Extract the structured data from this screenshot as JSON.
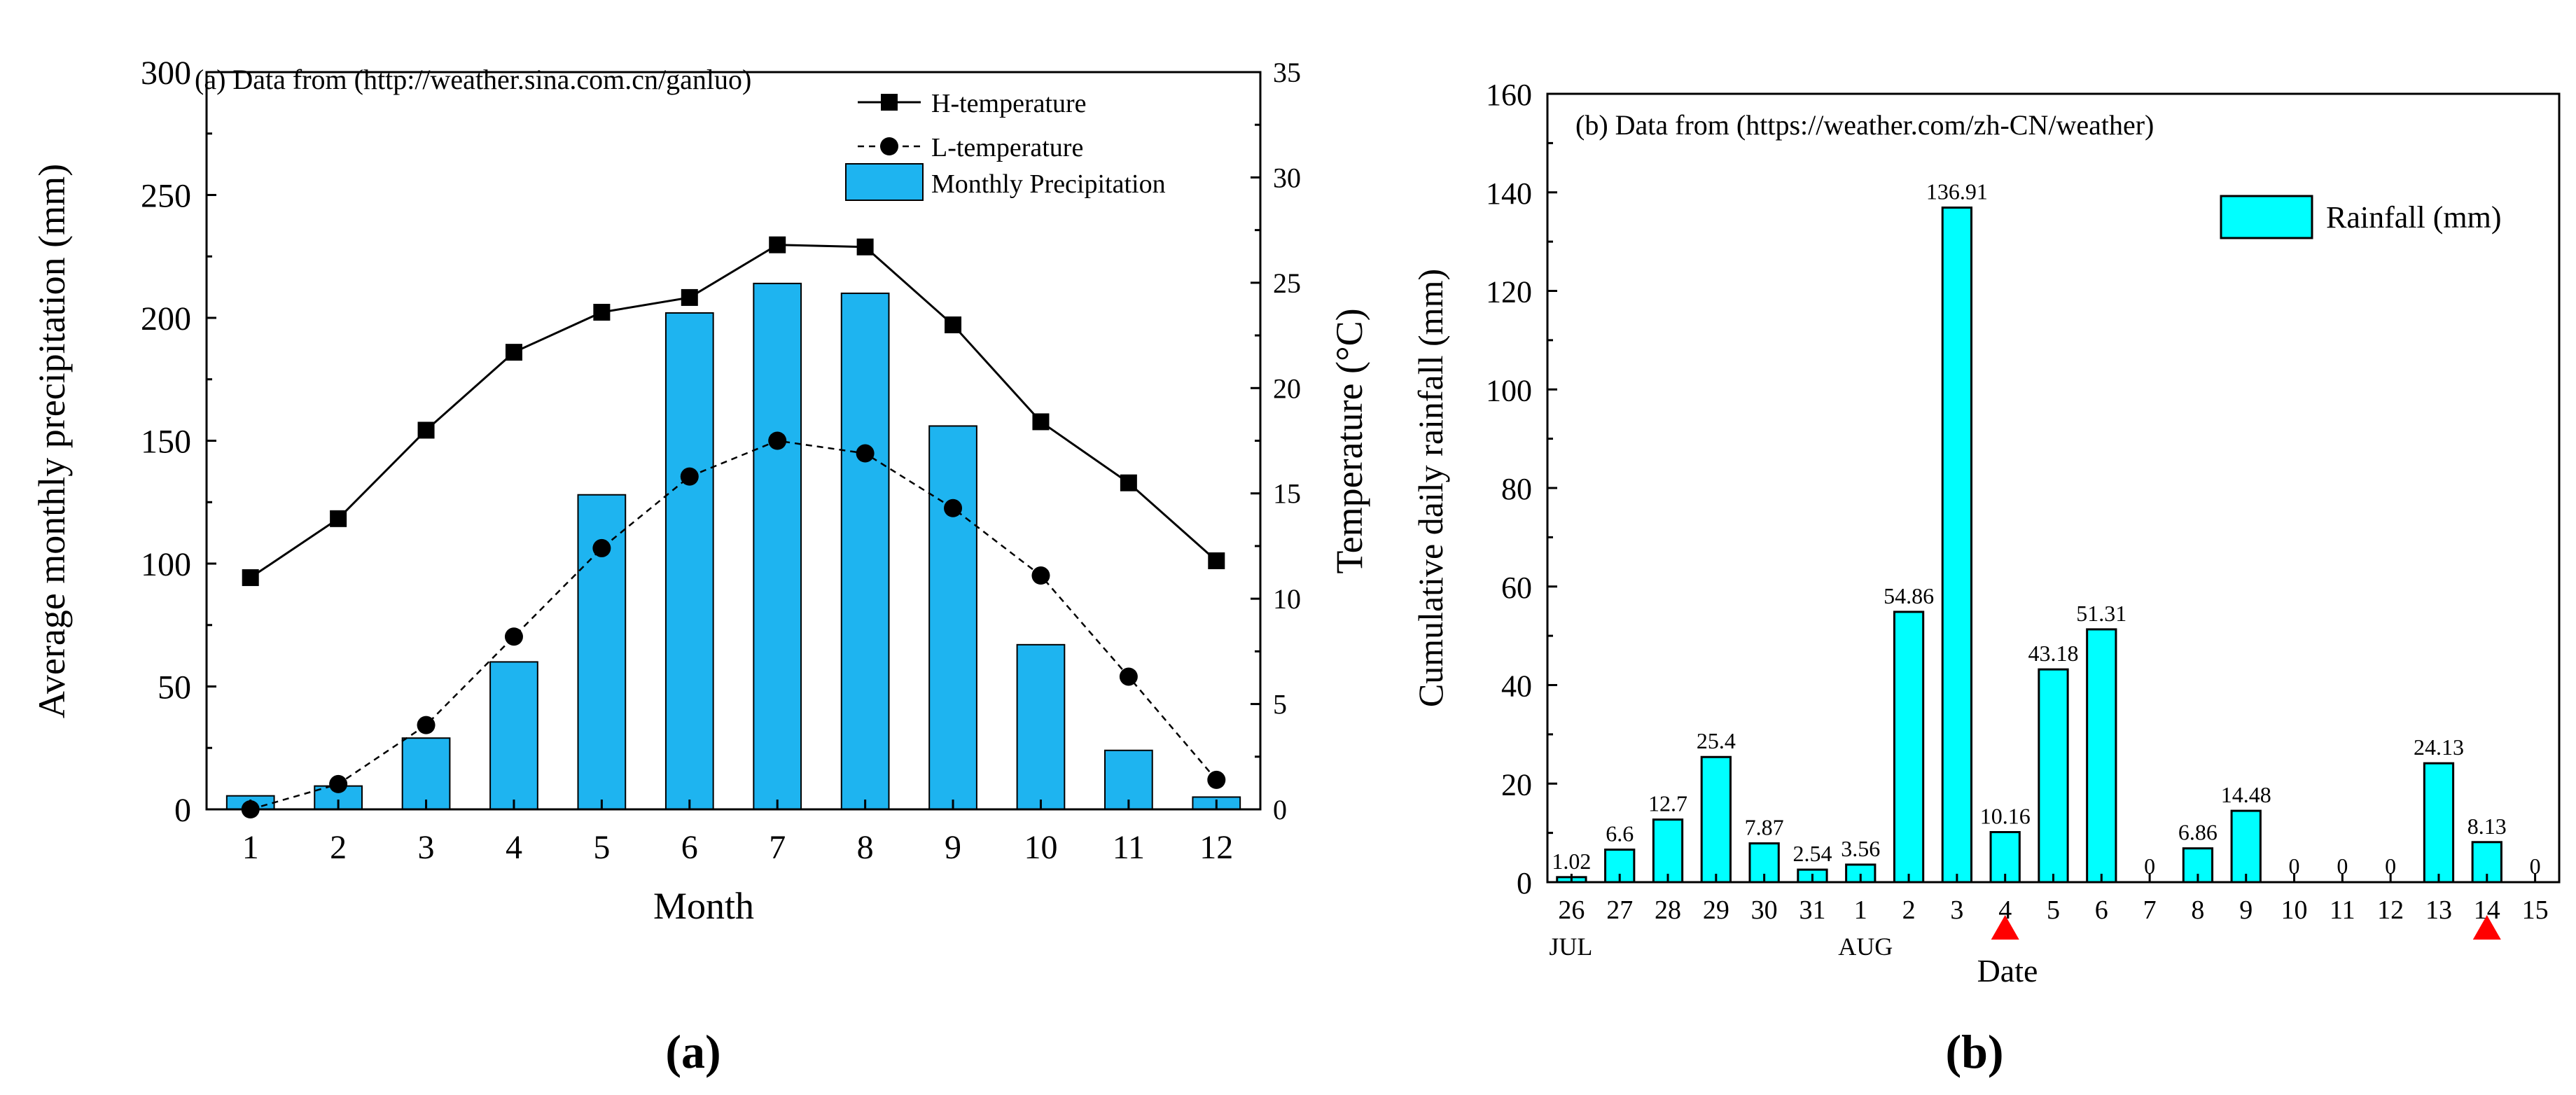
{
  "colors": {
    "bar_a": "#1EB4F0",
    "bar_b": "#00FFFF",
    "marker_red": "#FF0000",
    "axis": "#000000"
  },
  "chart_data": [
    {
      "type": "bar+line",
      "panel_label": "(a)",
      "annotation": "(a) Data from (http://weather.sina.com.cn/ganluo)",
      "xlabel": "Month",
      "ylabel_left": "Average monthly precipitation (mm)",
      "ylabel_right": "Temperature (°C)",
      "ylim_left": [
        0,
        300
      ],
      "ylim_right": [
        0,
        35
      ],
      "yticks_left": [
        0,
        50,
        100,
        150,
        200,
        250,
        300
      ],
      "yticks_right": [
        0,
        5,
        10,
        15,
        20,
        25,
        30,
        35
      ],
      "categories": [
        "1",
        "2",
        "3",
        "4",
        "5",
        "6",
        "7",
        "8",
        "9",
        "10",
        "11",
        "12"
      ],
      "bars": {
        "name": "Monthly Precipitation",
        "values": [
          5.5,
          9.5,
          29,
          60,
          128,
          202,
          214,
          210,
          156,
          67,
          24,
          5
        ]
      },
      "lines": [
        {
          "name": "H-temperature",
          "style": "solid",
          "marker": "square",
          "values": [
            11.0,
            13.8,
            18.0,
            21.7,
            23.6,
            24.3,
            26.8,
            26.7,
            23.0,
            18.4,
            15.5,
            11.8
          ]
        },
        {
          "name": "L-temperature",
          "style": "dashed",
          "marker": "circle",
          "values": [
            0.0,
            1.2,
            4.0,
            8.2,
            12.4,
            15.8,
            17.5,
            16.9,
            14.3,
            11.1,
            6.3,
            1.4
          ]
        }
      ],
      "legend_position": "top-right"
    },
    {
      "type": "bar",
      "panel_label": "(b)",
      "annotation": "(b) Data from (https://weather.com/zh-CN/weather)",
      "xlabel": "Date",
      "ylabel": "Cumulative daily rainfall (mm)",
      "ylim": [
        0,
        160
      ],
      "yticks": [
        0,
        20,
        40,
        60,
        80,
        100,
        120,
        140,
        160
      ],
      "legend": "Rainfall (mm)",
      "legend_position": "top-right",
      "categories": [
        "26",
        "27",
        "28",
        "29",
        "30",
        "31",
        "1",
        "2",
        "3",
        "4",
        "5",
        "6",
        "7",
        "8",
        "9",
        "10",
        "11",
        "12",
        "13",
        "14",
        "15"
      ],
      "values": [
        1.02,
        6.6,
        12.7,
        25.4,
        7.87,
        2.54,
        3.56,
        54.86,
        136.91,
        10.16,
        43.18,
        51.31,
        0,
        6.86,
        14.48,
        0,
        0,
        0,
        24.13,
        8.13,
        0
      ],
      "value_labels": [
        "1.02",
        "6.6",
        "12.7",
        "25.4",
        "7.87",
        "2.54",
        "3.56",
        "54.86",
        "136.91",
        "10.16",
        "43.18",
        "51.31",
        "0",
        "6.86",
        "14.48",
        "0",
        "0",
        "0",
        "24.13",
        "8.13",
        "0"
      ],
      "month_labels": [
        {
          "text": "JUL",
          "index": 0
        },
        {
          "text": "AUG",
          "index": 6
        }
      ],
      "markers": [
        {
          "category": "4",
          "shape": "triangle"
        },
        {
          "category": "14",
          "shape": "triangle"
        }
      ]
    }
  ]
}
